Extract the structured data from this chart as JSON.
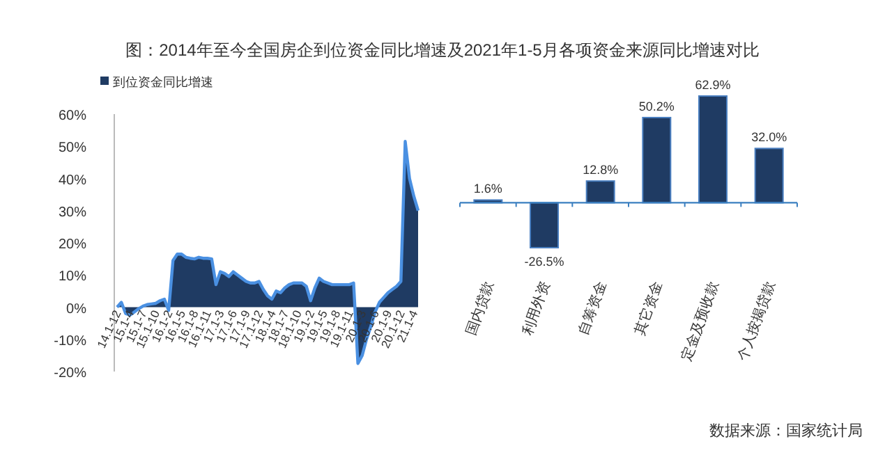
{
  "chart_data": [
    {
      "type": "area",
      "title": "图：2014年至今全国房企到位资金同比增速及2021年1-5月各项资金来源同比增速对比",
      "legend": "top left",
      "categories": [
        "14.1-12",
        null,
        null,
        "15.1-4",
        null,
        null,
        "15.1-7",
        null,
        null,
        "15.1-10",
        null,
        null,
        "16.1-2",
        null,
        null,
        "16.1-5",
        null,
        null,
        "16.1-8",
        null,
        null,
        "16.1-11",
        null,
        null,
        "17.1-3",
        null,
        null,
        "17.1-6",
        null,
        null,
        "17.1-9",
        null,
        null,
        "17.1-12",
        null,
        null,
        "18.1-4",
        null,
        null,
        "18.1-7",
        null,
        null,
        "18.1-10",
        null,
        null,
        "19.1-2",
        null,
        null,
        "19.1-5",
        null,
        null,
        "19.1-8",
        null,
        null,
        "19.1-11",
        null,
        null,
        "20.1-3",
        null,
        null,
        "20.1-6",
        null,
        null,
        "20.1-9",
        null,
        null,
        "20.1-12",
        null,
        null,
        "21.1-4",
        null
      ],
      "series": [
        {
          "name": "到位资金同比增速",
          "color": "#1f3b63",
          "values": [
            0,
            1.5,
            -2,
            -2.5,
            -1.5,
            -0.5,
            0.3,
            0.8,
            1,
            1.2,
            2,
            2.5,
            -1,
            14.5,
            16.5,
            16.5,
            15.5,
            15.2,
            15,
            15.5,
            15.2,
            15.2,
            15,
            7,
            11,
            10.5,
            9.5,
            11,
            10,
            9,
            8,
            7.5,
            7.5,
            8,
            5.5,
            3.5,
            2.5,
            5,
            4.5,
            6,
            7,
            7.5,
            7.5,
            7.5,
            6.5,
            2,
            6,
            9,
            8,
            7.5,
            7,
            7,
            7,
            7,
            7,
            7.5,
            -17.5,
            -15,
            -10,
            -6,
            -1.5,
            1.5,
            3,
            4.5,
            5.5,
            6.5,
            8,
            51.5,
            40,
            34.5,
            30
          ]
        }
      ],
      "ylim": [
        -20,
        60
      ],
      "yticks": [
        {
          "value": -20,
          "label": "-20%"
        },
        {
          "value": -10,
          "label": "-10%"
        },
        {
          "value": 0,
          "label": "0%"
        },
        {
          "value": 10,
          "label": "10%"
        },
        {
          "value": 20,
          "label": "20%"
        },
        {
          "value": 30,
          "label": "30%"
        },
        {
          "value": 40,
          "label": "40%"
        },
        {
          "value": 50,
          "label": "50%"
        },
        {
          "value": 60,
          "label": "60%"
        }
      ]
    },
    {
      "type": "bar",
      "categories": [
        "国内贷款",
        "利用外资",
        "自筹资金",
        "其它资金",
        "定金及预收款",
        "个人按揭贷款"
      ],
      "values": [
        1.6,
        -26.5,
        12.8,
        50.2,
        62.9,
        32.0
      ],
      "value_labels": [
        "1.6%",
        "-26.5%",
        "12.8%",
        "50.2%",
        "62.9%",
        "32.0%"
      ],
      "color": "#1f3b63",
      "ref_lines": [
        {
          "axis": "y",
          "value": 0,
          "color": "#3a7fc0"
        }
      ],
      "annotations": [
        "数据来源：国家统计局"
      ]
    }
  ]
}
